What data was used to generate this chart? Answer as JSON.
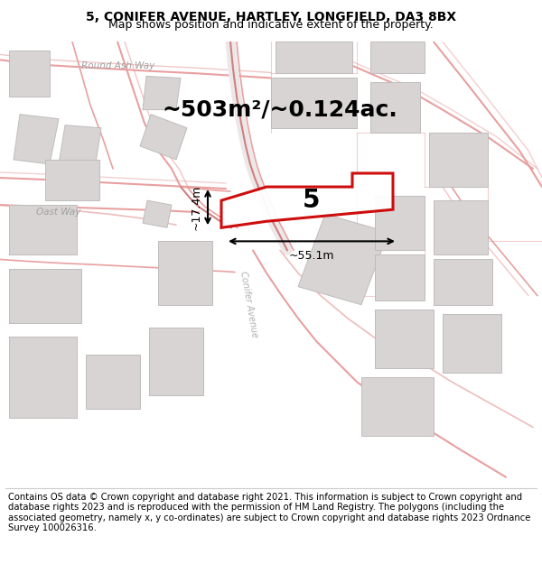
{
  "title": "5, CONIFER AVENUE, HARTLEY, LONGFIELD, DA3 8BX",
  "subtitle": "Map shows position and indicative extent of the property.",
  "footer": "Contains OS data © Crown copyright and database right 2021. This information is subject to Crown copyright and database rights 2023 and is reproduced with the permission of HM Land Registry. The polygons (including the associated geometry, namely x, y co-ordinates) are subject to Crown copyright and database rights 2023 Ordnance Survey 100026316.",
  "map_bg": "#f5f3f3",
  "road_color": "#e8a0a0",
  "road_color2": "#d08080",
  "building_color": "#d8d4d4",
  "building_edge": "#c0bcbc",
  "area_text": "~503m²/~0.124ac.",
  "width_text": "~55.1m",
  "height_text": "~17.4m",
  "number_text": "5",
  "street_label1": "Round Ash Way",
  "street_label2": "Oast Way",
  "street_label3": "Conifer Avenue",
  "title_fontsize": 10,
  "subtitle_fontsize": 9,
  "footer_fontsize": 7.2,
  "area_fontsize": 18
}
